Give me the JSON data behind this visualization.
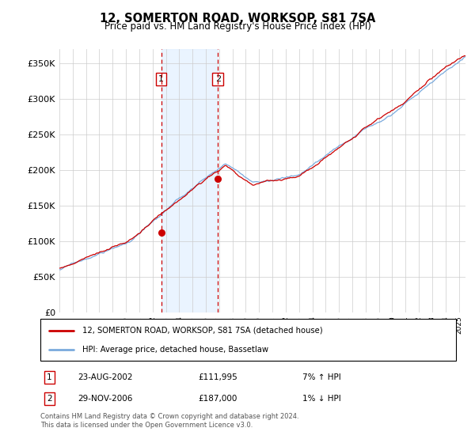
{
  "title": "12, SOMERTON ROAD, WORKSOP, S81 7SA",
  "subtitle": "Price paid vs. HM Land Registry's House Price Index (HPI)",
  "hpi_color": "#7aaadd",
  "price_color": "#cc0000",
  "sale1_date_num": 2002.64,
  "sale1_price": 111995,
  "sale1_label": "1",
  "sale1_date_str": "23-AUG-2002",
  "sale1_price_str": "£111,995",
  "sale1_hpi_str": "7% ↑ HPI",
  "sale2_date_num": 2006.91,
  "sale2_price": 187000,
  "sale2_label": "2",
  "sale2_date_str": "29-NOV-2006",
  "sale2_price_str": "£187,000",
  "sale2_hpi_str": "1% ↓ HPI",
  "legend_line1": "12, SOMERTON ROAD, WORKSOP, S81 7SA (detached house)",
  "legend_line2": "HPI: Average price, detached house, Bassetlaw",
  "footnote": "Contains HM Land Registry data © Crown copyright and database right 2024.\nThis data is licensed under the Open Government Licence v3.0.",
  "xmin": 1995,
  "xmax": 2025.5,
  "ylim": [
    0,
    370000
  ],
  "yticks": [
    0,
    50000,
    100000,
    150000,
    200000,
    250000,
    300000,
    350000
  ],
  "ytick_labels": [
    "£0",
    "£50K",
    "£100K",
    "£150K",
    "£200K",
    "£250K",
    "£300K",
    "£350K"
  ],
  "background_color": "#ffffff",
  "grid_color": "#cccccc",
  "shade_color": "#ddeeff"
}
